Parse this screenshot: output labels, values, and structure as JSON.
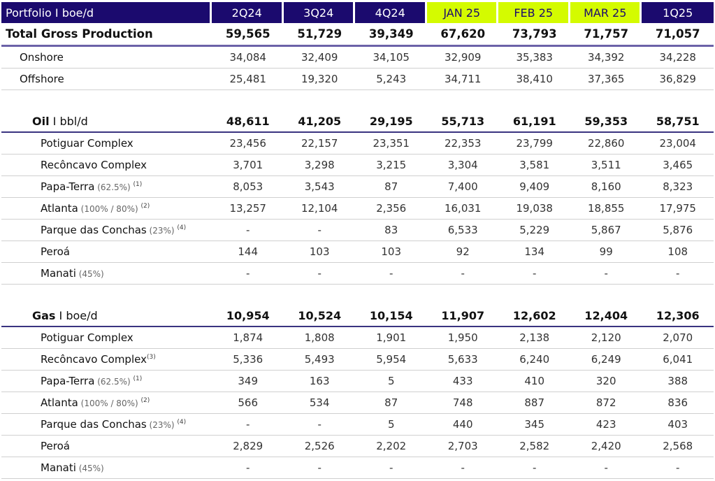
{
  "header": {
    "title": "Portfolio I boe/d",
    "columns": [
      "2Q24",
      "3Q24",
      "4Q24",
      "JAN 25",
      "FEB 25",
      "MAR 25",
      "1Q25"
    ],
    "highlight": [
      false,
      false,
      false,
      true,
      true,
      true,
      false
    ]
  },
  "colors": {
    "navy": "#1b0a6e",
    "lime": "#d4fb00"
  },
  "rows": [
    {
      "type": "total",
      "label": "Total Gross Production",
      "values": [
        "59,565",
        "51,729",
        "39,349",
        "67,620",
        "73,793",
        "71,757",
        "71,057"
      ]
    },
    {
      "type": "l1",
      "label": "Onshore",
      "values": [
        "34,084",
        "32,409",
        "34,105",
        "32,909",
        "35,383",
        "34,392",
        "34,228"
      ]
    },
    {
      "type": "l1",
      "label": "Offshore",
      "values": [
        "25,481",
        "19,320",
        "5,243",
        "34,711",
        "38,410",
        "37,365",
        "36,829"
      ]
    },
    {
      "type": "sp"
    },
    {
      "type": "sec",
      "label": "Oil",
      "unit": " I bbl/d",
      "values": [
        "48,611",
        "41,205",
        "29,195",
        "55,713",
        "61,191",
        "59,353",
        "58,751"
      ]
    },
    {
      "type": "l2",
      "label": "Potiguar Complex",
      "values": [
        "23,456",
        "22,157",
        "23,351",
        "22,353",
        "23,799",
        "22,860",
        "23,004"
      ]
    },
    {
      "type": "l2",
      "label": "Recôncavo Complex",
      "values": [
        "3,701",
        "3,298",
        "3,215",
        "3,304",
        "3,581",
        "3,511",
        "3,465"
      ]
    },
    {
      "type": "l2",
      "label": "Papa-Terra",
      "note": " (62.5%) ",
      "sup": "(1)",
      "values": [
        "8,053",
        "3,543",
        "87",
        "7,400",
        "9,409",
        "8,160",
        "8,323"
      ]
    },
    {
      "type": "l2",
      "label": "Atlanta",
      "note": " (100% / 80%) ",
      "sup": "(2)",
      "values": [
        "13,257",
        "12,104",
        "2,356",
        "16,031",
        "19,038",
        "18,855",
        "17,975"
      ]
    },
    {
      "type": "l2",
      "label": "Parque das Conchas",
      "note": " (23%) ",
      "sup": "(4)",
      "values": [
        "-",
        "-",
        "83",
        "6,533",
        "5,229",
        "5,867",
        "5,876"
      ]
    },
    {
      "type": "l2",
      "label": "Peroá",
      "values": [
        "144",
        "103",
        "103",
        "92",
        "134",
        "99",
        "108"
      ]
    },
    {
      "type": "l2",
      "label": "Manati",
      "note": " (45%)",
      "values": [
        "-",
        "-",
        "-",
        "-",
        "-",
        "-",
        "-"
      ]
    },
    {
      "type": "sp"
    },
    {
      "type": "sec",
      "label": "Gas",
      "unit": " I boe/d",
      "values": [
        "10,954",
        "10,524",
        "10,154",
        "11,907",
        "12,602",
        "12,404",
        "12,306"
      ]
    },
    {
      "type": "l2",
      "label": "Potiguar Complex",
      "values": [
        "1,874",
        "1,808",
        "1,901",
        "1,950",
        "2,138",
        "2,120",
        "2,070"
      ]
    },
    {
      "type": "l2",
      "label": "Recôncavo Complex",
      "sup": "(3)",
      "values": [
        "5,336",
        "5,493",
        "5,954",
        "5,633",
        "6,240",
        "6,249",
        "6,041"
      ]
    },
    {
      "type": "l2",
      "label": "Papa-Terra",
      "note": " (62.5%) ",
      "sup": "(1)",
      "values": [
        "349",
        "163",
        "5",
        "433",
        "410",
        "320",
        "388"
      ]
    },
    {
      "type": "l2",
      "label": "Atlanta",
      "note": " (100% / 80%) ",
      "sup": "(2)",
      "values": [
        "566",
        "534",
        "87",
        "748",
        "887",
        "872",
        "836"
      ]
    },
    {
      "type": "l2",
      "label": "Parque das Conchas",
      "note": " (23%) ",
      "sup": "(4)",
      "values": [
        "-",
        "-",
        "5",
        "440",
        "345",
        "423",
        "403"
      ]
    },
    {
      "type": "l2",
      "label": "Peroá",
      "values": [
        "2,829",
        "2,526",
        "2,202",
        "2,703",
        "2,582",
        "2,420",
        "2,568"
      ]
    },
    {
      "type": "l2",
      "label": "Manati",
      "note": " (45%)",
      "values": [
        "-",
        "-",
        "-",
        "-",
        "-",
        "-",
        "-"
      ]
    }
  ]
}
